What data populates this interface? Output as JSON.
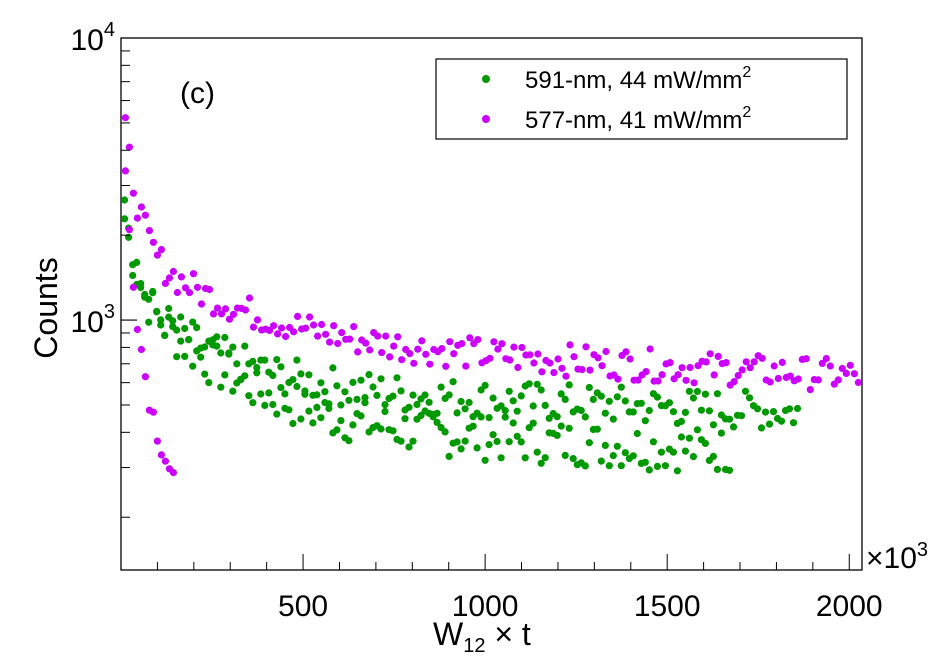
{
  "chart_data": {
    "type": "scatter",
    "panel_label": "(c)",
    "xlabel": {
      "main": "W",
      "sub": "12",
      "rest": " × t"
    },
    "ylabel": "Counts",
    "x_multiplier": {
      "base": "×10",
      "exp": "3"
    },
    "xlim": [
      0,
      2035
    ],
    "ylim": [
      130,
      10000
    ],
    "yscale": "log",
    "x_ticks": [
      500,
      1000,
      1500,
      2000
    ],
    "x_tick_labels": [
      "500",
      "1000",
      "1500",
      "2000"
    ],
    "y_major_ticks": [
      {
        "value": 1000,
        "base": "10",
        "exp": "3"
      },
      {
        "value": 10000,
        "base": "10",
        "exp": "4"
      }
    ],
    "legend": {
      "placement": "top-right",
      "entries": [
        {
          "series": 0,
          "text": "591-nm, 44 mW/mm",
          "sup": "2"
        },
        {
          "series": 1,
          "text": "577-nm, 41 mW/mm",
          "sup": "2"
        }
      ]
    },
    "series": [
      {
        "color": "#009900",
        "curves": [
          {
            "x0": 10,
            "x1": 1680,
            "step": 11,
            "a": 1.45,
            "tau": 28,
            "b": 0.9,
            "tau2": 220,
            "c": 0.42,
            "k": 0.00012,
            "noise": 0.035
          },
          {
            "x0": 10,
            "x1": 1860,
            "step": 11,
            "a": 2.6,
            "tau": 22,
            "b": 0.75,
            "tau2": 200,
            "c": 0.58,
            "k": 0.00011,
            "noise": 0.03
          }
        ]
      },
      {
        "color": "#cc00ff",
        "curves": [
          {
            "x0": 12,
            "x1": 150,
            "step": 11,
            "a": 4.5,
            "tau": 18,
            "b": 0.9,
            "tau2": 70,
            "c": 0.2,
            "k": 0.0015,
            "noise": 0.02
          },
          {
            "x0": 12,
            "x1": 2030,
            "step": 11,
            "a": 4.2,
            "tau": 30,
            "b": 1.0,
            "tau2": 260,
            "c": 0.85,
            "k": 0.000145,
            "noise": 0.025
          }
        ]
      }
    ]
  }
}
